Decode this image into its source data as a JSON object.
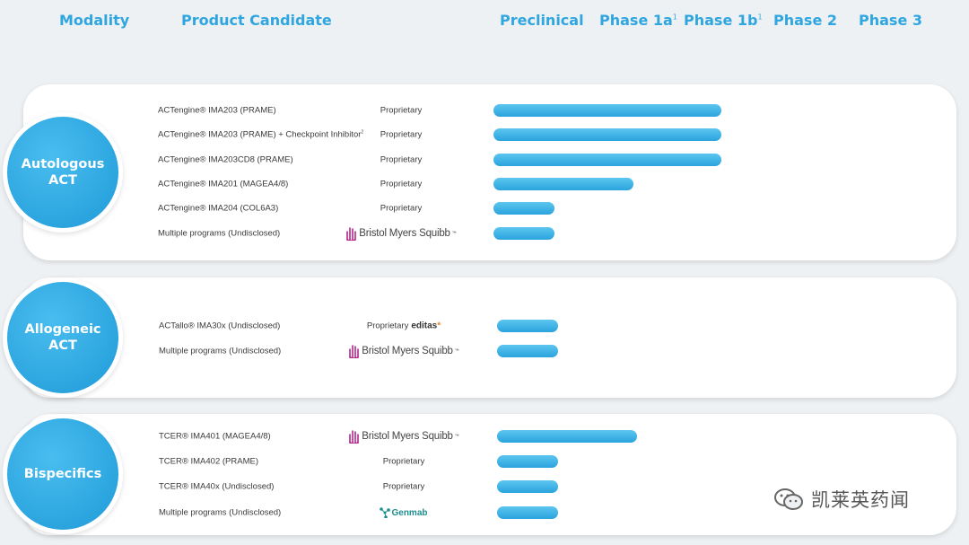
{
  "chart_data": {
    "type": "bar",
    "orientation": "horizontal",
    "phases": [
      {
        "label": "Preclinical",
        "sup": ""
      },
      {
        "label": "Phase 1a",
        "sup": "1"
      },
      {
        "label": "Phase 1b",
        "sup": "1"
      },
      {
        "label": "Phase 2",
        "sup": ""
      },
      {
        "label": "Phase 3",
        "sup": ""
      }
    ],
    "column_headers": {
      "modality": "Modality",
      "candidate": "Product Candidate"
    },
    "groups": [
      {
        "modality": "Autologous ACT",
        "rows": [
          {
            "name": "ACTengine® IMA203 (PRAME)",
            "sup": "",
            "partner": "Proprietary",
            "logo": "",
            "progress": 2.6
          },
          {
            "name": "ACTengine® IMA203 (PRAME) + Checkpoint Inhibitor",
            "sup": "2",
            "partner": "Proprietary",
            "logo": "",
            "progress": 2.6
          },
          {
            "name": "ACTengine® IMA203CD8 (PRAME)",
            "sup": "",
            "partner": "Proprietary",
            "logo": "",
            "progress": 2.6
          },
          {
            "name": "ACTengine® IMA201 (MAGEA4/8)",
            "sup": "",
            "partner": "Proprietary",
            "logo": "",
            "progress": 1.6
          },
          {
            "name": "ACTengine® IMA204 (COL6A3)",
            "sup": "",
            "partner": "Proprietary",
            "logo": "",
            "progress": 0.7
          },
          {
            "name": "Multiple programs (Undisclosed)",
            "sup": "",
            "partner": "",
            "logo": "Bristol Myers Squibb",
            "progress": 0.7
          }
        ]
      },
      {
        "modality": "Allogeneic ACT",
        "rows": [
          {
            "name": "ACTallo® IMA30x (Undisclosed)",
            "sup": "",
            "partner": "Proprietary",
            "logo": "editas",
            "progress": 0.7
          },
          {
            "name": "Multiple programs (Undisclosed)",
            "sup": "",
            "partner": "",
            "logo": "Bristol Myers Squibb",
            "progress": 0.7
          }
        ]
      },
      {
        "modality": "Bispecifics",
        "rows": [
          {
            "name": "TCER® IMA401 (MAGEA4/8)",
            "sup": "",
            "partner": "",
            "logo": "Bristol Myers Squibb",
            "progress": 1.6
          },
          {
            "name": "TCER® IMA402 (PRAME)",
            "sup": "",
            "partner": "Proprietary",
            "logo": "",
            "progress": 0.7
          },
          {
            "name": "TCER® IMA40x (Undisclosed)",
            "sup": "",
            "partner": "Proprietary",
            "logo": "",
            "progress": 0.7
          },
          {
            "name": "Multiple programs (Undisclosed)",
            "sup": "",
            "partner": "",
            "logo": "Genmab",
            "progress": 0.7
          }
        ]
      }
    ]
  },
  "watermark": {
    "text": "凯莱英药闻"
  },
  "colors": {
    "accent": "#2fa6df",
    "bar": "#2aa3dd",
    "bms": "#b3268e",
    "editas": "#e8832a",
    "genmab": "#1e8d8d"
  }
}
